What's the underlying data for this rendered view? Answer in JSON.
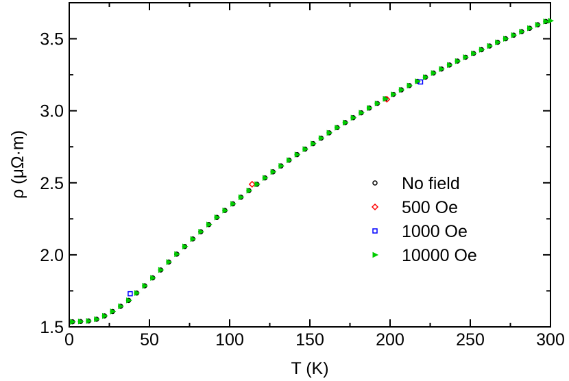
{
  "chart_data": {
    "type": "scatter",
    "title": "",
    "xlabel": "T (K)",
    "ylabel": "ρ (μΩ·m)",
    "xlim": [
      0,
      300
    ],
    "ylim": [
      1.5,
      3.75
    ],
    "x_ticks": [
      "0",
      "50",
      "100",
      "150",
      "200",
      "250",
      "300"
    ],
    "y_ticks": [
      "1.5",
      "2.0",
      "2.5",
      "3.0",
      "3.5"
    ],
    "grid": false,
    "legend_position": "center-right",
    "series": [
      {
        "name": "No field",
        "marker": "circle",
        "color": "#000000",
        "x": [
          2,
          7,
          12,
          17,
          22,
          27,
          32,
          37,
          42,
          47,
          52,
          57,
          62,
          67,
          72,
          77,
          82,
          87,
          92,
          97,
          102,
          107,
          112,
          117,
          122,
          127,
          132,
          137,
          142,
          147,
          152,
          157,
          162,
          167,
          172,
          177,
          182,
          187,
          192,
          197,
          202,
          207,
          212,
          217,
          222,
          227,
          232,
          237,
          242,
          247,
          252,
          257,
          262,
          267,
          272,
          277,
          282,
          287,
          292,
          297
        ],
        "y": [
          1.535,
          1.537,
          1.541,
          1.553,
          1.576,
          1.607,
          1.643,
          1.684,
          1.735,
          1.785,
          1.84,
          1.895,
          1.95,
          2.005,
          2.058,
          2.11,
          2.16,
          2.21,
          2.26,
          2.308,
          2.354,
          2.4,
          2.446,
          2.49,
          2.534,
          2.576,
          2.617,
          2.657,
          2.696,
          2.734,
          2.772,
          2.81,
          2.847,
          2.883,
          2.918,
          2.952,
          2.986,
          3.019,
          3.051,
          3.083,
          3.114,
          3.145,
          3.175,
          3.205,
          3.233,
          3.262,
          3.29,
          3.318,
          3.345,
          3.372,
          3.398,
          3.424,
          3.45,
          3.475,
          3.5,
          3.525,
          3.549,
          3.573,
          3.597,
          3.62
        ]
      },
      {
        "name": "500 Oe",
        "marker": "diamond",
        "color": "#ff0000",
        "x": [
          114,
          198
        ],
        "y": [
          2.49,
          3.08
        ]
      },
      {
        "name": "1000 Oe",
        "marker": "square",
        "color": "#0000ff",
        "x": [
          38,
          219
        ],
        "y": [
          1.73,
          3.2
        ]
      },
      {
        "name": "10000 Oe",
        "marker": "triangle-right",
        "color": "#00cc00",
        "x": [
          2,
          7,
          12,
          17,
          22,
          27,
          32,
          37,
          42,
          47,
          52,
          57,
          62,
          67,
          72,
          77,
          82,
          87,
          92,
          97,
          102,
          107,
          112,
          117,
          122,
          127,
          132,
          137,
          142,
          147,
          152,
          157,
          162,
          167,
          172,
          177,
          182,
          187,
          192,
          197,
          202,
          207,
          212,
          217,
          222,
          227,
          232,
          237,
          242,
          247,
          252,
          257,
          262,
          267,
          272,
          277,
          282,
          287,
          292,
          297,
          300
        ],
        "y": [
          1.535,
          1.537,
          1.541,
          1.553,
          1.576,
          1.607,
          1.643,
          1.684,
          1.735,
          1.785,
          1.84,
          1.895,
          1.95,
          2.005,
          2.058,
          2.11,
          2.16,
          2.21,
          2.26,
          2.308,
          2.354,
          2.4,
          2.446,
          2.49,
          2.534,
          2.576,
          2.617,
          2.657,
          2.696,
          2.734,
          2.772,
          2.81,
          2.847,
          2.883,
          2.918,
          2.952,
          2.986,
          3.019,
          3.051,
          3.083,
          3.114,
          3.145,
          3.175,
          3.205,
          3.233,
          3.262,
          3.29,
          3.318,
          3.345,
          3.372,
          3.398,
          3.424,
          3.45,
          3.475,
          3.5,
          3.525,
          3.549,
          3.573,
          3.597,
          3.62,
          3.625
        ]
      }
    ]
  }
}
